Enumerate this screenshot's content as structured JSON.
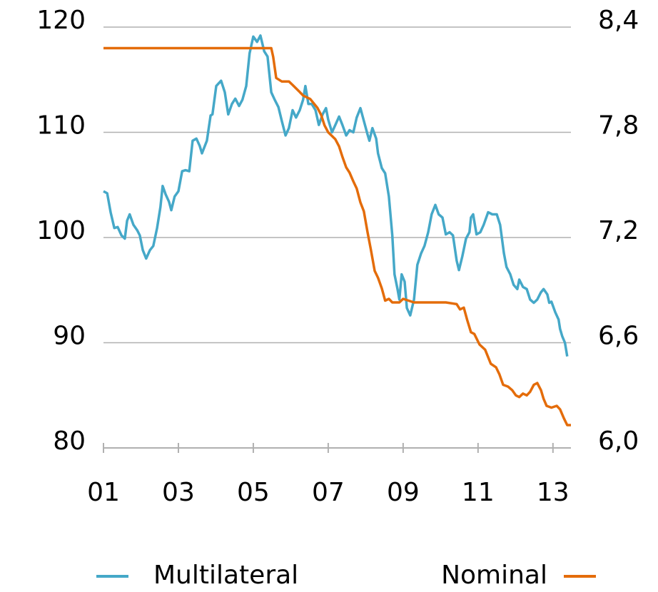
{
  "chart_data": {
    "type": "line",
    "xlim": [
      2001,
      2013.48
    ],
    "xticks": [
      {
        "value": 2001,
        "label": "01"
      },
      {
        "value": 2003,
        "label": "03"
      },
      {
        "value": 2005,
        "label": "05"
      },
      {
        "value": 2007,
        "label": "07"
      },
      {
        "value": 2009,
        "label": "09"
      },
      {
        "value": 2011,
        "label": "11"
      },
      {
        "value": 2013,
        "label": "13"
      }
    ],
    "ylim": [
      80,
      120
    ],
    "yticks": [
      80,
      90,
      100,
      110,
      120
    ],
    "y2lim": [
      6.0,
      8.4
    ],
    "y2ticks": [
      {
        "value": 6.0,
        "label": "6,0"
      },
      {
        "value": 6.6,
        "label": "6,6"
      },
      {
        "value": 7.2,
        "label": "7,2"
      },
      {
        "value": 7.8,
        "label": "7,8"
      },
      {
        "value": 8.4,
        "label": "8,4"
      }
    ],
    "grid": true,
    "legend": "bottom",
    "series": [
      {
        "name": "Multilateral",
        "color": "#45a8c8",
        "axis": "y",
        "x": [
          2001.0,
          2001.1,
          2001.19,
          2001.29,
          2001.38,
          2001.48,
          2001.57,
          2001.63,
          2001.7,
          2001.8,
          2001.9,
          2001.97,
          2002.05,
          2002.14,
          2002.24,
          2002.33,
          2002.43,
          2002.52,
          2002.58,
          2002.66,
          2002.75,
          2002.81,
          2002.9,
          2003.0,
          2003.1,
          2003.19,
          2003.29,
          2003.38,
          2003.48,
          2003.57,
          2003.63,
          2003.76,
          2003.86,
          2003.91,
          2004.01,
          2004.14,
          2004.24,
          2004.33,
          2004.43,
          2004.52,
          2004.62,
          2004.71,
          2004.81,
          2004.9,
          2005.0,
          2005.1,
          2005.19,
          2005.29,
          2005.38,
          2005.48,
          2005.57,
          2005.67,
          2005.76,
          2005.86,
          2005.95,
          2006.05,
          2006.14,
          2006.24,
          2006.33,
          2006.39,
          2006.47,
          2006.56,
          2006.66,
          2006.75,
          2006.85,
          2006.94,
          2007.0,
          2007.1,
          2007.19,
          2007.29,
          2007.38,
          2007.48,
          2007.57,
          2007.67,
          2007.76,
          2007.86,
          2007.95,
          2008.05,
          2008.1,
          2008.18,
          2008.28,
          2008.33,
          2008.43,
          2008.52,
          2008.62,
          2008.71,
          2008.77,
          2008.85,
          2008.9,
          2008.96,
          2009.04,
          2009.1,
          2009.19,
          2009.29,
          2009.38,
          2009.48,
          2009.57,
          2009.67,
          2009.76,
          2009.86,
          2009.95,
          2010.05,
          2010.14,
          2010.24,
          2010.33,
          2010.43,
          2010.49,
          2010.58,
          2010.68,
          2010.77,
          2010.81,
          2010.87,
          2010.96,
          2011.06,
          2011.15,
          2011.27,
          2011.38,
          2011.5,
          2011.59,
          2011.69,
          2011.76,
          2011.86,
          2011.95,
          2012.05,
          2012.1,
          2012.2,
          2012.3,
          2012.39,
          2012.49,
          2012.58,
          2012.68,
          2012.75,
          2012.85,
          2012.9,
          2012.96,
          2013.06,
          2013.15,
          2013.19,
          2013.25,
          2013.32,
          2013.38
        ],
        "values": [
          104.4,
          104.2,
          102.4,
          100.9,
          101.0,
          100.2,
          99.9,
          101.6,
          102.2,
          101.2,
          100.7,
          100.2,
          98.8,
          98.0,
          98.8,
          99.2,
          100.9,
          102.9,
          104.9,
          104.1,
          103.4,
          102.6,
          103.9,
          104.4,
          106.3,
          106.4,
          106.3,
          109.2,
          109.4,
          108.7,
          108.0,
          109.2,
          111.6,
          111.7,
          114.4,
          114.9,
          113.8,
          111.7,
          112.7,
          113.2,
          112.5,
          113.1,
          114.4,
          117.5,
          119.1,
          118.6,
          119.2,
          117.7,
          117.2,
          113.8,
          113.1,
          112.4,
          111.1,
          109.7,
          110.4,
          112.1,
          111.4,
          112.1,
          113.1,
          114.4,
          112.7,
          112.7,
          112.1,
          110.7,
          111.7,
          112.3,
          111.2,
          110.0,
          110.7,
          111.5,
          110.7,
          109.7,
          110.2,
          110.0,
          111.4,
          112.3,
          111.1,
          109.8,
          109.2,
          110.4,
          109.4,
          108.0,
          106.6,
          106.1,
          103.9,
          100.2,
          96.5,
          95.1,
          94.1,
          96.5,
          95.8,
          93.3,
          92.6,
          94.1,
          97.4,
          98.5,
          99.2,
          100.5,
          102.2,
          103.1,
          102.2,
          101.9,
          100.3,
          100.5,
          100.2,
          97.8,
          96.9,
          98.2,
          99.9,
          100.5,
          101.9,
          102.2,
          100.3,
          100.5,
          101.2,
          102.4,
          102.2,
          102.2,
          101.2,
          98.5,
          97.2,
          96.5,
          95.5,
          95.1,
          96.0,
          95.3,
          95.1,
          94.1,
          93.8,
          94.1,
          94.8,
          95.1,
          94.6,
          93.8,
          93.9,
          92.9,
          92.2,
          91.3,
          90.6,
          90.0,
          88.7
        ]
      },
      {
        "name": "Nominal",
        "color": "#e46c0a",
        "axis": "y2",
        "x": [
          2001.0,
          2005.48,
          2005.53,
          2005.61,
          2005.76,
          2005.95,
          2006.05,
          2006.24,
          2006.33,
          2006.52,
          2006.71,
          2006.81,
          2006.9,
          2007.0,
          2007.19,
          2007.29,
          2007.38,
          2007.48,
          2007.57,
          2007.67,
          2007.76,
          2007.86,
          2007.95,
          2008.05,
          2008.14,
          2008.24,
          2008.33,
          2008.43,
          2008.52,
          2008.62,
          2008.71,
          2008.9,
          2009.0,
          2009.29,
          2009.48,
          2009.76,
          2010.05,
          2010.14,
          2010.43,
          2010.52,
          2010.62,
          2010.71,
          2010.81,
          2010.9,
          2011.04,
          2011.19,
          2011.34,
          2011.48,
          2011.57,
          2011.67,
          2011.8,
          2011.91,
          2012.01,
          2012.1,
          2012.2,
          2012.3,
          2012.39,
          2012.49,
          2012.58,
          2012.68,
          2012.75,
          2012.83,
          2012.96,
          2013.1,
          2013.19,
          2013.29,
          2013.38,
          2013.48
        ],
        "values": [
          8.28,
          8.28,
          8.23,
          8.11,
          8.09,
          8.09,
          8.07,
          8.03,
          8.01,
          7.99,
          7.94,
          7.9,
          7.84,
          7.8,
          7.76,
          7.72,
          7.66,
          7.6,
          7.57,
          7.52,
          7.48,
          7.4,
          7.35,
          7.23,
          7.13,
          7.01,
          6.97,
          6.91,
          6.84,
          6.85,
          6.83,
          6.83,
          6.85,
          6.83,
          6.83,
          6.83,
          6.83,
          6.83,
          6.82,
          6.79,
          6.8,
          6.73,
          6.66,
          6.65,
          6.59,
          6.56,
          6.48,
          6.46,
          6.42,
          6.36,
          6.35,
          6.33,
          6.3,
          6.29,
          6.31,
          6.3,
          6.32,
          6.36,
          6.37,
          6.33,
          6.28,
          6.24,
          6.23,
          6.24,
          6.22,
          6.17,
          6.13,
          6.13
        ]
      }
    ]
  }
}
